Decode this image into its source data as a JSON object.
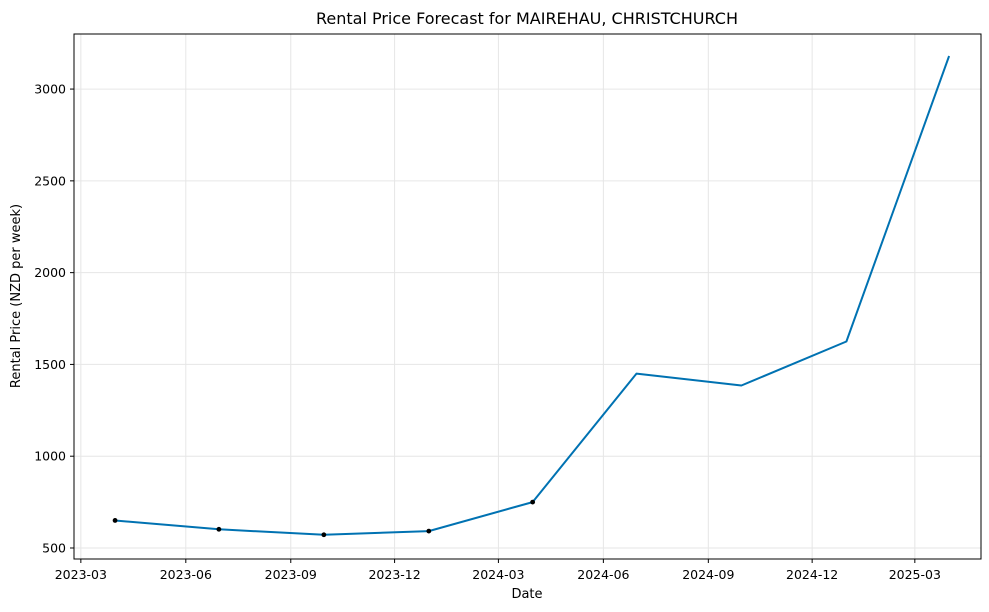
{
  "chart_data": {
    "type": "line",
    "title": "Rental Price Forecast for MAIREHAU, CHRISTCHURCH",
    "xlabel": "Date",
    "ylabel": "Rental Price (NZD per week)",
    "x_ticks": [
      "2023-03",
      "2023-06",
      "2023-09",
      "2023-12",
      "2024-03",
      "2024-06",
      "2024-09",
      "2024-12",
      "2025-03"
    ],
    "y_ticks": [
      500,
      1000,
      1500,
      2000,
      2500,
      3000
    ],
    "ylim": [
      440,
      3300
    ],
    "xlim": [
      "2023-02-23",
      "2025-04-28"
    ],
    "grid": true,
    "series": [
      {
        "color": "#0072B2",
        "points": [
          {
            "x": "2023-03-31",
            "y": 650
          },
          {
            "x": "2023-06-30",
            "y": 602
          },
          {
            "x": "2023-09-30",
            "y": 572
          },
          {
            "x": "2023-12-31",
            "y": 592
          },
          {
            "x": "2024-03-31",
            "y": 750
          },
          {
            "x": "2024-06-30",
            "y": 1450
          },
          {
            "x": "2024-09-30",
            "y": 1385
          },
          {
            "x": "2024-12-31",
            "y": 1625
          },
          {
            "x": "2025-03-31",
            "y": 3180
          }
        ]
      }
    ],
    "observed": [
      {
        "x": "2023-03-31",
        "y": 650
      },
      {
        "x": "2023-06-30",
        "y": 602
      },
      {
        "x": "2023-09-30",
        "y": 572
      },
      {
        "x": "2023-12-31",
        "y": 592
      },
      {
        "x": "2024-03-31",
        "y": 750
      }
    ]
  }
}
